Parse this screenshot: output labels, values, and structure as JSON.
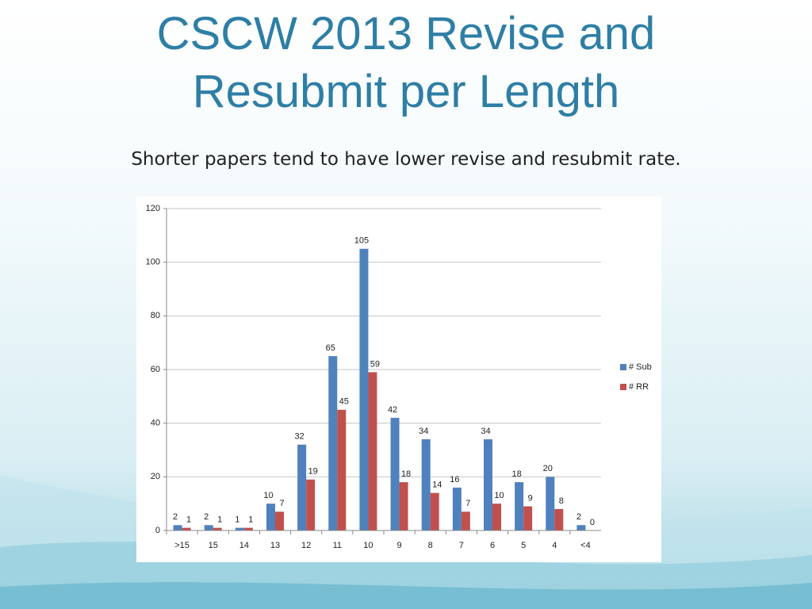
{
  "chart_data": {
    "type": "bar",
    "title": "CSCW 2013 Revise and Resubmit per Length",
    "subtitle": "Shorter papers tend to have lower revise and resubmit rate.",
    "categories": [
      ">15",
      "15",
      "14",
      "13",
      "12",
      "11",
      "10",
      "9",
      "8",
      "7",
      "6",
      "5",
      "4",
      "<4"
    ],
    "series": [
      {
        "name": "# Sub",
        "color": "#4f81bd",
        "values": [
          2,
          2,
          1,
          10,
          32,
          65,
          105,
          42,
          34,
          16,
          34,
          18,
          20,
          2
        ]
      },
      {
        "name": "# RR",
        "color": "#c0504d",
        "values": [
          1,
          1,
          1,
          7,
          19,
          45,
          59,
          18,
          14,
          7,
          10,
          9,
          8,
          0
        ]
      }
    ],
    "ylim": [
      0,
      120
    ],
    "yticks": [
      0,
      20,
      40,
      60,
      80,
      100,
      120
    ],
    "grid": true,
    "legend": "right"
  }
}
